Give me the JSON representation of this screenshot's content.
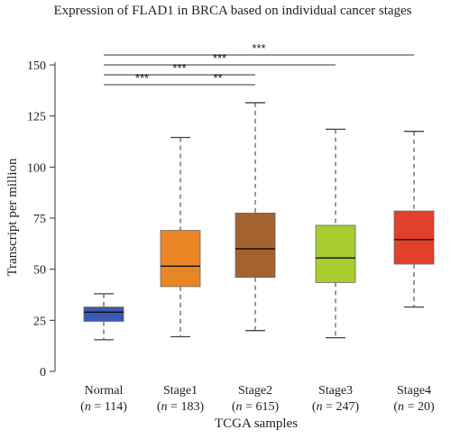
{
  "chart_data": {
    "type": "box",
    "title": "Expression of FLAD1 in BRCA based on individual cancer stages",
    "xlabel": "TCGA samples",
    "ylabel": "Transcript per million",
    "ylim": [
      0,
      150
    ],
    "yticks": [
      0,
      25,
      50,
      75,
      100,
      125,
      150
    ],
    "grid": false,
    "legend": "none",
    "categories": [
      {
        "name": "Normal",
        "n_prefix": "(",
        "n_var": "n",
        "n_rest": " = 114)",
        "color": "#3d57b4",
        "whisker_low": 15.5,
        "q1": 24.5,
        "median": 29,
        "q3": 31.5,
        "whisker_high": 38
      },
      {
        "name": "Stage1",
        "n_prefix": "(",
        "n_var": "n",
        "n_rest": " = 183)",
        "color": "#ea8526",
        "whisker_low": 17,
        "q1": 41.5,
        "median": 51.5,
        "q3": 69,
        "whisker_high": 114.5
      },
      {
        "name": "Stage2",
        "n_prefix": "(",
        "n_var": "n",
        "n_rest": " = 615)",
        "color": "#a6622e",
        "whisker_low": 20,
        "q1": 46,
        "median": 60,
        "q3": 77.5,
        "whisker_high": 131.5
      },
      {
        "name": "Stage3",
        "n_prefix": "(",
        "n_var": "n",
        "n_rest": " = 247)",
        "color": "#a7cd2f",
        "whisker_low": 16.5,
        "q1": 43.5,
        "median": 55.5,
        "q3": 71.5,
        "whisker_high": 118.5
      },
      {
        "name": "Stage4",
        "n_prefix": "(",
        "n_var": "n",
        "n_rest": " = 20)",
        "color": "#e3402c",
        "whisker_low": 31.5,
        "q1": 52.5,
        "median": 64.5,
        "q3": 78.5,
        "whisker_high": 117.5
      }
    ],
    "significance": [
      {
        "from": 0,
        "to": 4,
        "label": "***"
      },
      {
        "from": 0,
        "to": 3,
        "label": "***"
      },
      {
        "from": 0,
        "to": 2,
        "label": "***"
      },
      {
        "from": 0,
        "to": 1,
        "label": "***"
      },
      {
        "from": 1,
        "to": 2,
        "label": "**"
      }
    ]
  }
}
